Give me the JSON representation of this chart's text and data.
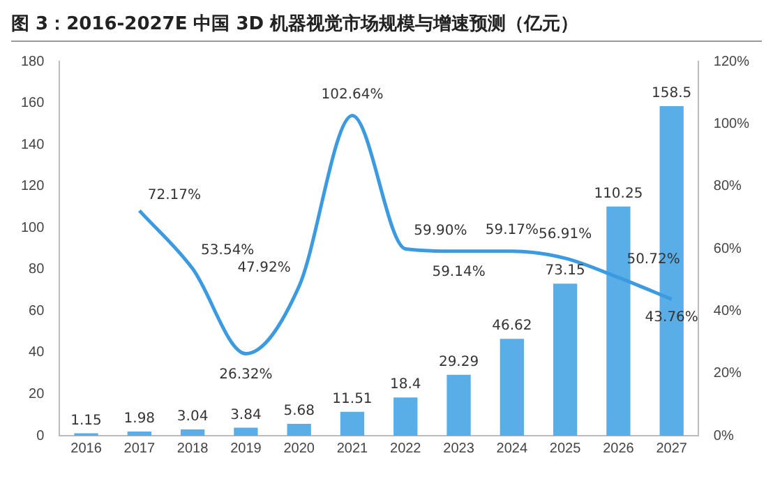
{
  "chart_data": {
    "type": "bar",
    "title": "图 3：2016-2027E 中国 3D 机器视觉市场规模与增速预测（亿元）",
    "categories": [
      "2016",
      "2017",
      "2018",
      "2019",
      "2020",
      "2021",
      "2022",
      "2023",
      "2024",
      "2025",
      "2026",
      "2027"
    ],
    "series": [
      {
        "color": "#5aaee8",
        "values": [
          1.15,
          1.98,
          3.04,
          3.84,
          5.68,
          11.51,
          18.4,
          29.29,
          46.62,
          73.15,
          110.25,
          158.5
        ],
        "value_labels": [
          "1.15",
          "1.98",
          "3.04",
          "3.84",
          "5.68",
          "11.51",
          "18.4",
          "29.29",
          "46.62",
          "73.15",
          "110.25",
          "158.5"
        ]
      },
      {
        "type": "line",
        "axis": "y2",
        "color": "#3c9ae0",
        "values": [
          null,
          72.17,
          53.54,
          26.32,
          47.92,
          102.64,
          59.9,
          59.14,
          59.17,
          56.91,
          50.72,
          43.76
        ],
        "value_labels": [
          null,
          "72.17%",
          "53.54%",
          "26.32%",
          "47.92%",
          "102.64%",
          "59.90%",
          "59.14%",
          "59.17%",
          "56.91%",
          "50.72%",
          "43.76%"
        ]
      }
    ],
    "ylim": [
      0,
      180
    ],
    "yticks": [
      0,
      20,
      40,
      60,
      80,
      100,
      120,
      140,
      160,
      180
    ],
    "y2lim": [
      0,
      120
    ],
    "y2ticks": [
      {
        "value": 0,
        "label": "0%"
      },
      {
        "value": 20,
        "label": "20%"
      },
      {
        "value": 40,
        "label": "40%"
      },
      {
        "value": 60,
        "label": "60%"
      },
      {
        "value": 80,
        "label": "80%"
      },
      {
        "value": 100,
        "label": "100%"
      },
      {
        "value": 120,
        "label": "120%"
      }
    ],
    "grid": false,
    "legend": false
  }
}
